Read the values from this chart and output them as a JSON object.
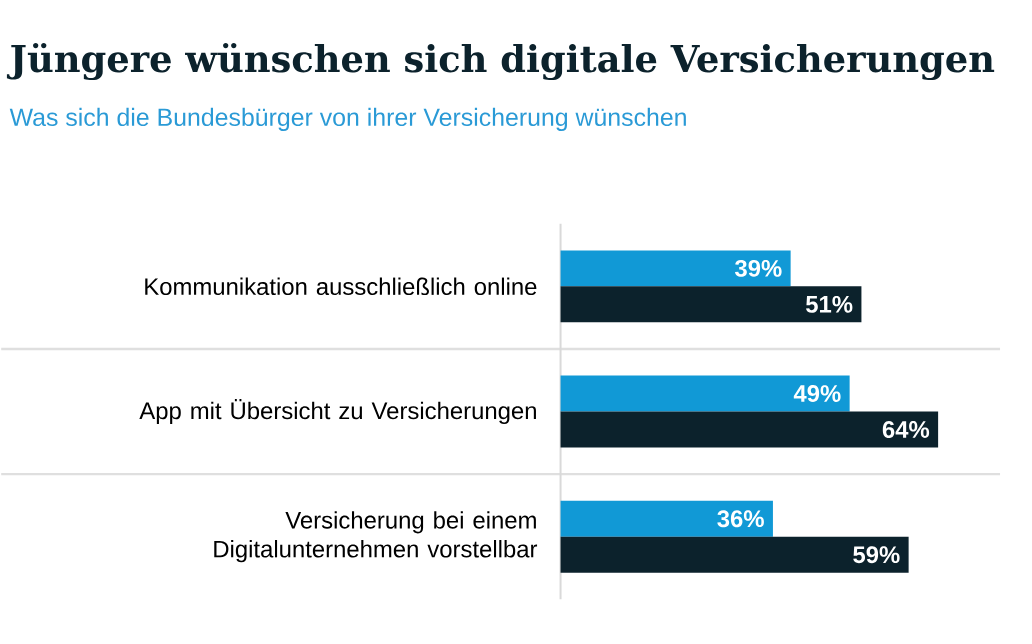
{
  "chart_data": {
    "type": "bar",
    "orientation": "horizontal",
    "title": "Jüngere wünschen sich digitale Versicherungen",
    "subtitle": "Was sich die Bundesbürger von ihrer Versicherung wünschen",
    "categories": [
      "Kommunikation ausschließlich online",
      "App mit Übersicht zu Versicherungen",
      "Versicherung bei einem Digitalunternehmen vorstellbar"
    ],
    "series": [
      {
        "color": "#1199d6",
        "values": [
          39,
          49,
          36
        ],
        "value_labels": [
          "39%",
          "49%",
          "36%"
        ]
      },
      {
        "color": "#0c222c",
        "values": [
          51,
          64,
          59
        ],
        "value_labels": [
          "51%",
          "64%",
          "59%"
        ]
      }
    ]
  }
}
